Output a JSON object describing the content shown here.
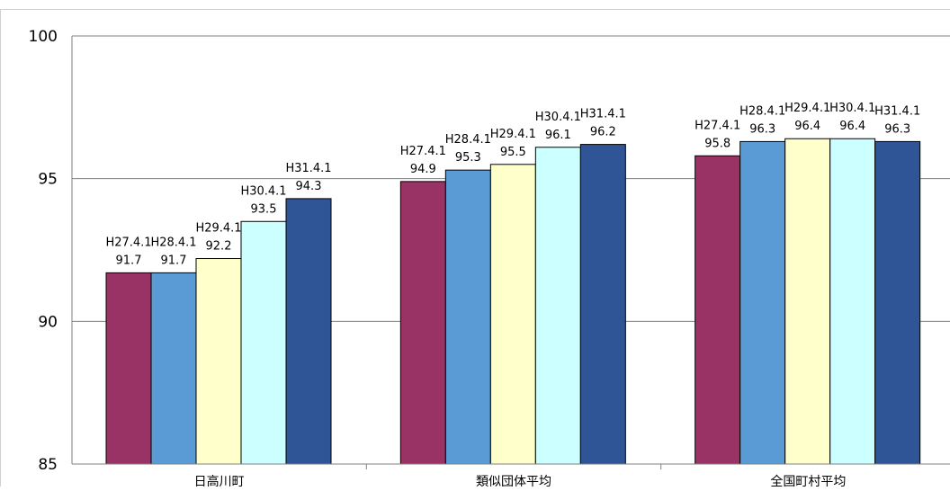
{
  "chart_data": {
    "type": "bar",
    "title": "",
    "xlabel": "",
    "ylabel": "",
    "categories": [
      "日高川町",
      "類似団体平均",
      "全国町村平均"
    ],
    "series": [
      {
        "name": "H27.4.1",
        "values": [
          91.7,
          94.9,
          95.8
        ]
      },
      {
        "name": "H28.4.1",
        "values": [
          91.7,
          95.3,
          96.3
        ]
      },
      {
        "name": "H29.4.1",
        "values": [
          92.2,
          95.5,
          96.4
        ]
      },
      {
        "name": "H30.4.1",
        "values": [
          93.5,
          96.1,
          96.4
        ]
      },
      {
        "name": "H31.4.1",
        "values": [
          94.3,
          96.2,
          96.3
        ]
      }
    ],
    "ylim": [
      85,
      100
    ],
    "yticks": [
      "85",
      "90",
      "95",
      "100"
    ],
    "grid": true,
    "legend": "none",
    "colors": [
      "#993366",
      "#5B9BD5",
      "#FFFFCC",
      "#CCFFFF",
      "#2F5597"
    ]
  }
}
